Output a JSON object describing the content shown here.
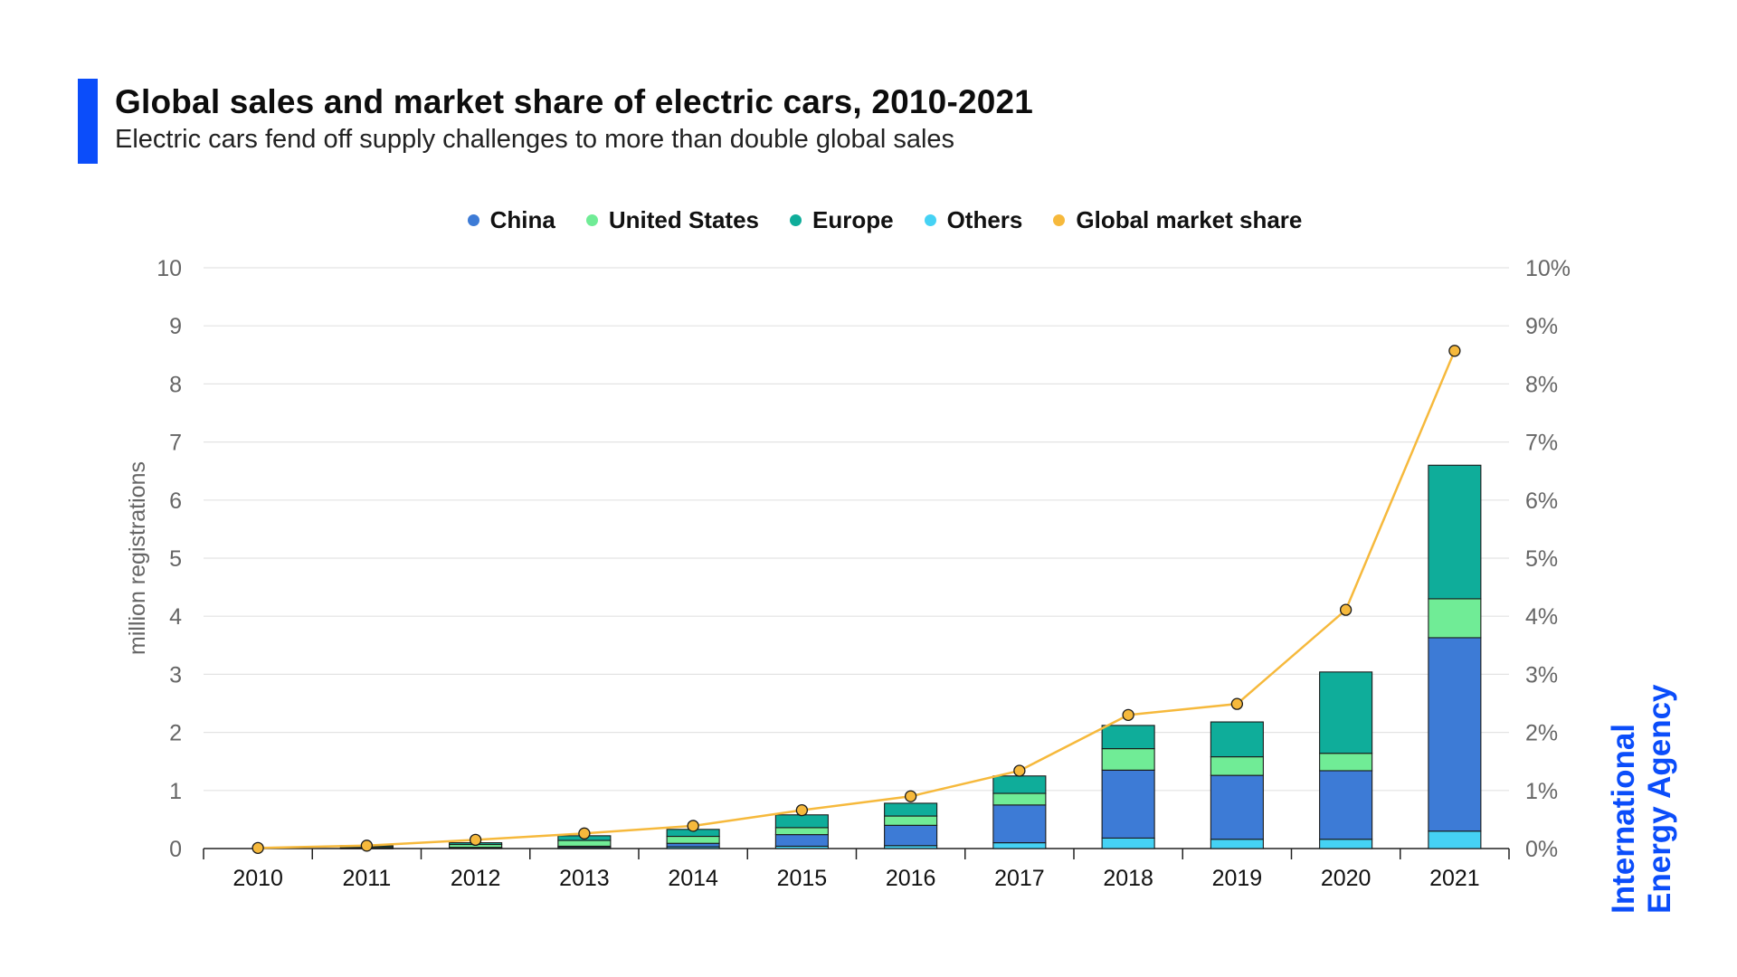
{
  "header": {
    "title": "Global sales and market share of electric cars, 2010-2021",
    "subtitle": "Electric cars fend off supply challenges to more than double global sales"
  },
  "logo": {
    "line1": "International",
    "line2": "Energy Agency",
    "color": "#0b4dfa"
  },
  "chart_data": {
    "type": "bar",
    "stacked": true,
    "categories": [
      "2010",
      "2011",
      "2012",
      "2013",
      "2014",
      "2015",
      "2016",
      "2017",
      "2018",
      "2019",
      "2020",
      "2021"
    ],
    "series": [
      {
        "name": "Others",
        "color": "#45d2f4",
        "values": [
          0.0,
          0.005,
          0.01,
          0.02,
          0.03,
          0.04,
          0.05,
          0.1,
          0.18,
          0.16,
          0.16,
          0.3
        ]
      },
      {
        "name": "China",
        "color": "#3d7bd6",
        "values": [
          0.0,
          0.005,
          0.01,
          0.02,
          0.06,
          0.2,
          0.35,
          0.65,
          1.17,
          1.1,
          1.18,
          3.33
        ]
      },
      {
        "name": "United States",
        "color": "#70ec96",
        "values": [
          0.0,
          0.02,
          0.05,
          0.1,
          0.12,
          0.12,
          0.16,
          0.2,
          0.37,
          0.32,
          0.3,
          0.67
        ]
      },
      {
        "name": "Europe",
        "color": "#0fad9a",
        "values": [
          0.0,
          0.02,
          0.03,
          0.08,
          0.12,
          0.22,
          0.22,
          0.3,
          0.4,
          0.6,
          1.4,
          2.3
        ]
      }
    ],
    "line_series": {
      "name": "Global market share",
      "color": "#f6b93c",
      "axis": "right",
      "values": [
        0.01,
        0.05,
        0.15,
        0.26,
        0.39,
        0.66,
        0.9,
        1.34,
        2.3,
        2.49,
        4.11,
        8.57
      ]
    },
    "legend": [
      {
        "name": "China",
        "color": "#3d7bd6"
      },
      {
        "name": "United States",
        "color": "#70ec96"
      },
      {
        "name": "Europe",
        "color": "#0fad9a"
      },
      {
        "name": "Others",
        "color": "#45d2f4"
      },
      {
        "name": "Global market share",
        "color": "#f6b93c"
      }
    ],
    "legend_position": "top-center",
    "ylabel": "million registrations",
    "ylim": [
      0,
      10
    ],
    "y_ticks": [
      "0",
      "1",
      "2",
      "3",
      "4",
      "5",
      "6",
      "7",
      "8",
      "9",
      "10"
    ],
    "y2lim": [
      0,
      10
    ],
    "y2_ticks": [
      "0%",
      "1%",
      "2%",
      "3%",
      "4%",
      "5%",
      "6%",
      "7%",
      "8%",
      "9%",
      "10%"
    ],
    "grid": true
  }
}
